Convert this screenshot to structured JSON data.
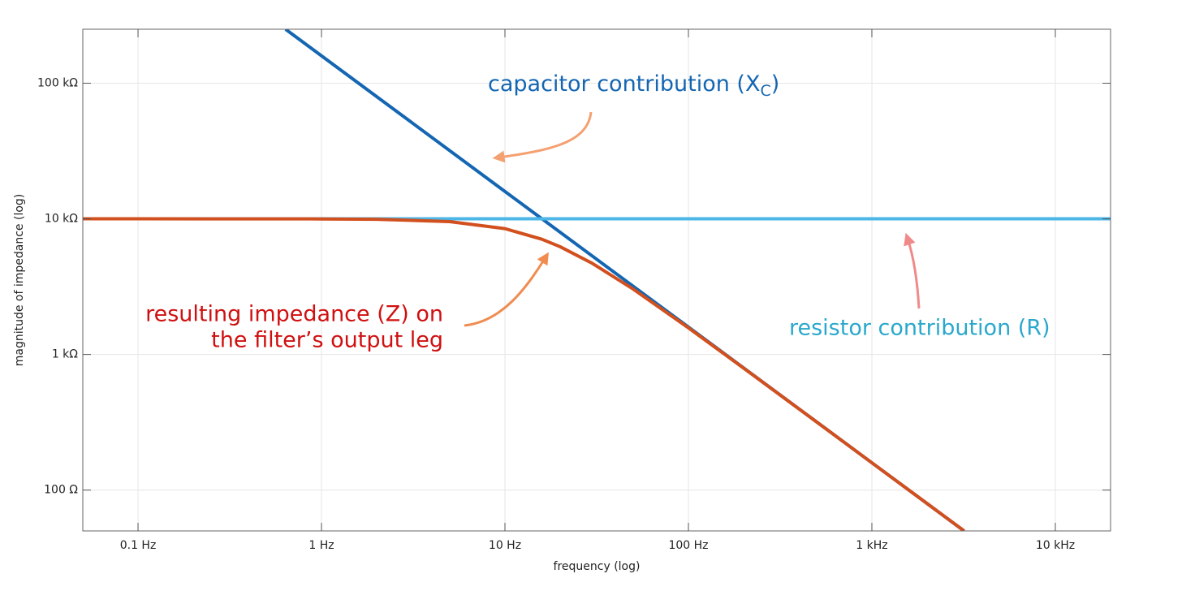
{
  "chart_data": {
    "type": "line",
    "xlabel": "frequency (log)",
    "ylabel": "magnitude of impedance (log)",
    "xscale": "log",
    "yscale": "log",
    "grid": true,
    "xlim": [
      0.05,
      20000
    ],
    "ylim": [
      50,
      250000
    ],
    "xticks": [
      {
        "value": 0.1,
        "label": "0.1 Hz"
      },
      {
        "value": 1,
        "label": "1 Hz"
      },
      {
        "value": 10,
        "label": "10 Hz"
      },
      {
        "value": 100,
        "label": "100 Hz"
      },
      {
        "value": 1000,
        "label": "1 kHz"
      },
      {
        "value": 10000,
        "label": "10 kHz"
      }
    ],
    "yticks": [
      {
        "value": 100,
        "label": "100 Ω"
      },
      {
        "value": 1000,
        "label": "1 kΩ"
      },
      {
        "value": 10000,
        "label": "10 kΩ"
      },
      {
        "value": 100000,
        "label": "100 kΩ"
      }
    ],
    "series": [
      {
        "color": "#1466b2",
        "x": [
          0.637,
          1,
          10,
          100,
          1000,
          3183
        ],
        "values": [
          250000,
          159155,
          15916,
          1592,
          159,
          50
        ]
      },
      {
        "color": "#4cb6e6",
        "x": [
          0.05,
          20000
        ],
        "values": [
          10000,
          10000
        ]
      },
      {
        "color": "#d24f1e",
        "x": [
          0.05,
          0.1,
          0.5,
          1,
          2,
          5,
          10,
          15.9,
          20,
          30,
          50,
          100,
          200,
          500,
          1000,
          2000,
          3183
        ],
        "values": [
          10000,
          10000,
          9995,
          9980,
          9922,
          9540,
          8467,
          7071,
          6227,
          4688,
          3033,
          1572,
          793,
          318,
          159,
          79.6,
          50
        ]
      }
    ],
    "annotations": [
      {
        "text": "capacitor contribution (X",
        "subscript": "C",
        "suffix": ")",
        "color": "#1466b2"
      },
      {
        "text": "resistor contribution (R)",
        "color": "#2aa8cc"
      },
      {
        "lines": [
          "resulting impedance (Z) on",
          "the filter’s output leg"
        ],
        "color": "#d01010"
      }
    ]
  }
}
